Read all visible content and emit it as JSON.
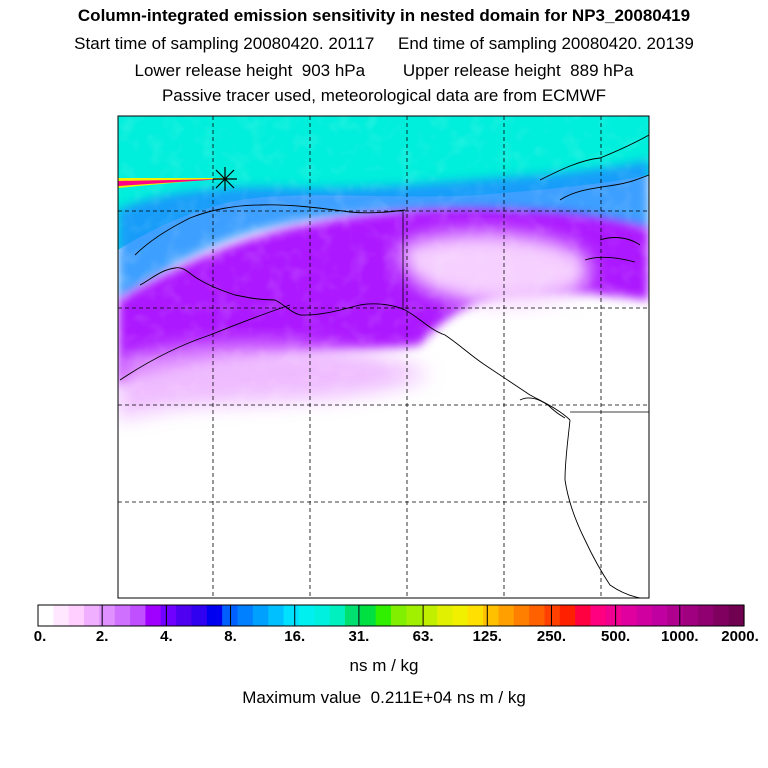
{
  "header": {
    "title": "Column-integrated emission sensitivity in nested domain for NP3_20080419",
    "sampling_line": "Start time of sampling 20080420. 20117     End time of sampling 20080420. 20139",
    "release_line": "Lower release height  903 hPa        Upper release height  889 hPa",
    "tracer_line": "Passive tracer used, meteorological data are from ECMWF"
  },
  "map": {
    "release_marker": "asterisk-marker",
    "colors": {
      "ocean_high": "#00e8d8",
      "band_blue": "#1e90ff",
      "band_purple": "#a000ff",
      "band_light": "#e060ff",
      "plume_core": "#ff0090"
    }
  },
  "colorbar": {
    "tick_labels": [
      "0.",
      "2.",
      "4.",
      "8.",
      "16.",
      "31.",
      "63.",
      "125.",
      "250.",
      "500.",
      "1000.",
      "2000."
    ],
    "unit": "ns m / kg",
    "swatches": [
      "#ffffff",
      "#ffe8ff",
      "#ffd0ff",
      "#f0b0ff",
      "#e090ff",
      "#d070ff",
      "#c050ff",
      "#a000ff",
      "#7000ff",
      "#5000f0",
      "#3000f0",
      "#0000f0",
      "#0060ff",
      "#0080ff",
      "#00a0ff",
      "#00c0ff",
      "#00e0ff",
      "#00f0f0",
      "#00f0e0",
      "#00f0c0",
      "#00e070",
      "#00e040",
      "#30f000",
      "#80f000",
      "#a0f000",
      "#c0f000",
      "#e0f000",
      "#f0f000",
      "#ffe000",
      "#ffc000",
      "#ffa000",
      "#ff8000",
      "#ff6000",
      "#ff4000",
      "#ff2000",
      "#ff0040",
      "#ff0080",
      "#f00090",
      "#e000a0",
      "#d000a0",
      "#c000a0",
      "#b00090",
      "#a00080",
      "#900070",
      "#800060",
      "#700050"
    ]
  },
  "footer": {
    "max_value_text": "Maximum value  0.211E+04 ns m / kg"
  }
}
